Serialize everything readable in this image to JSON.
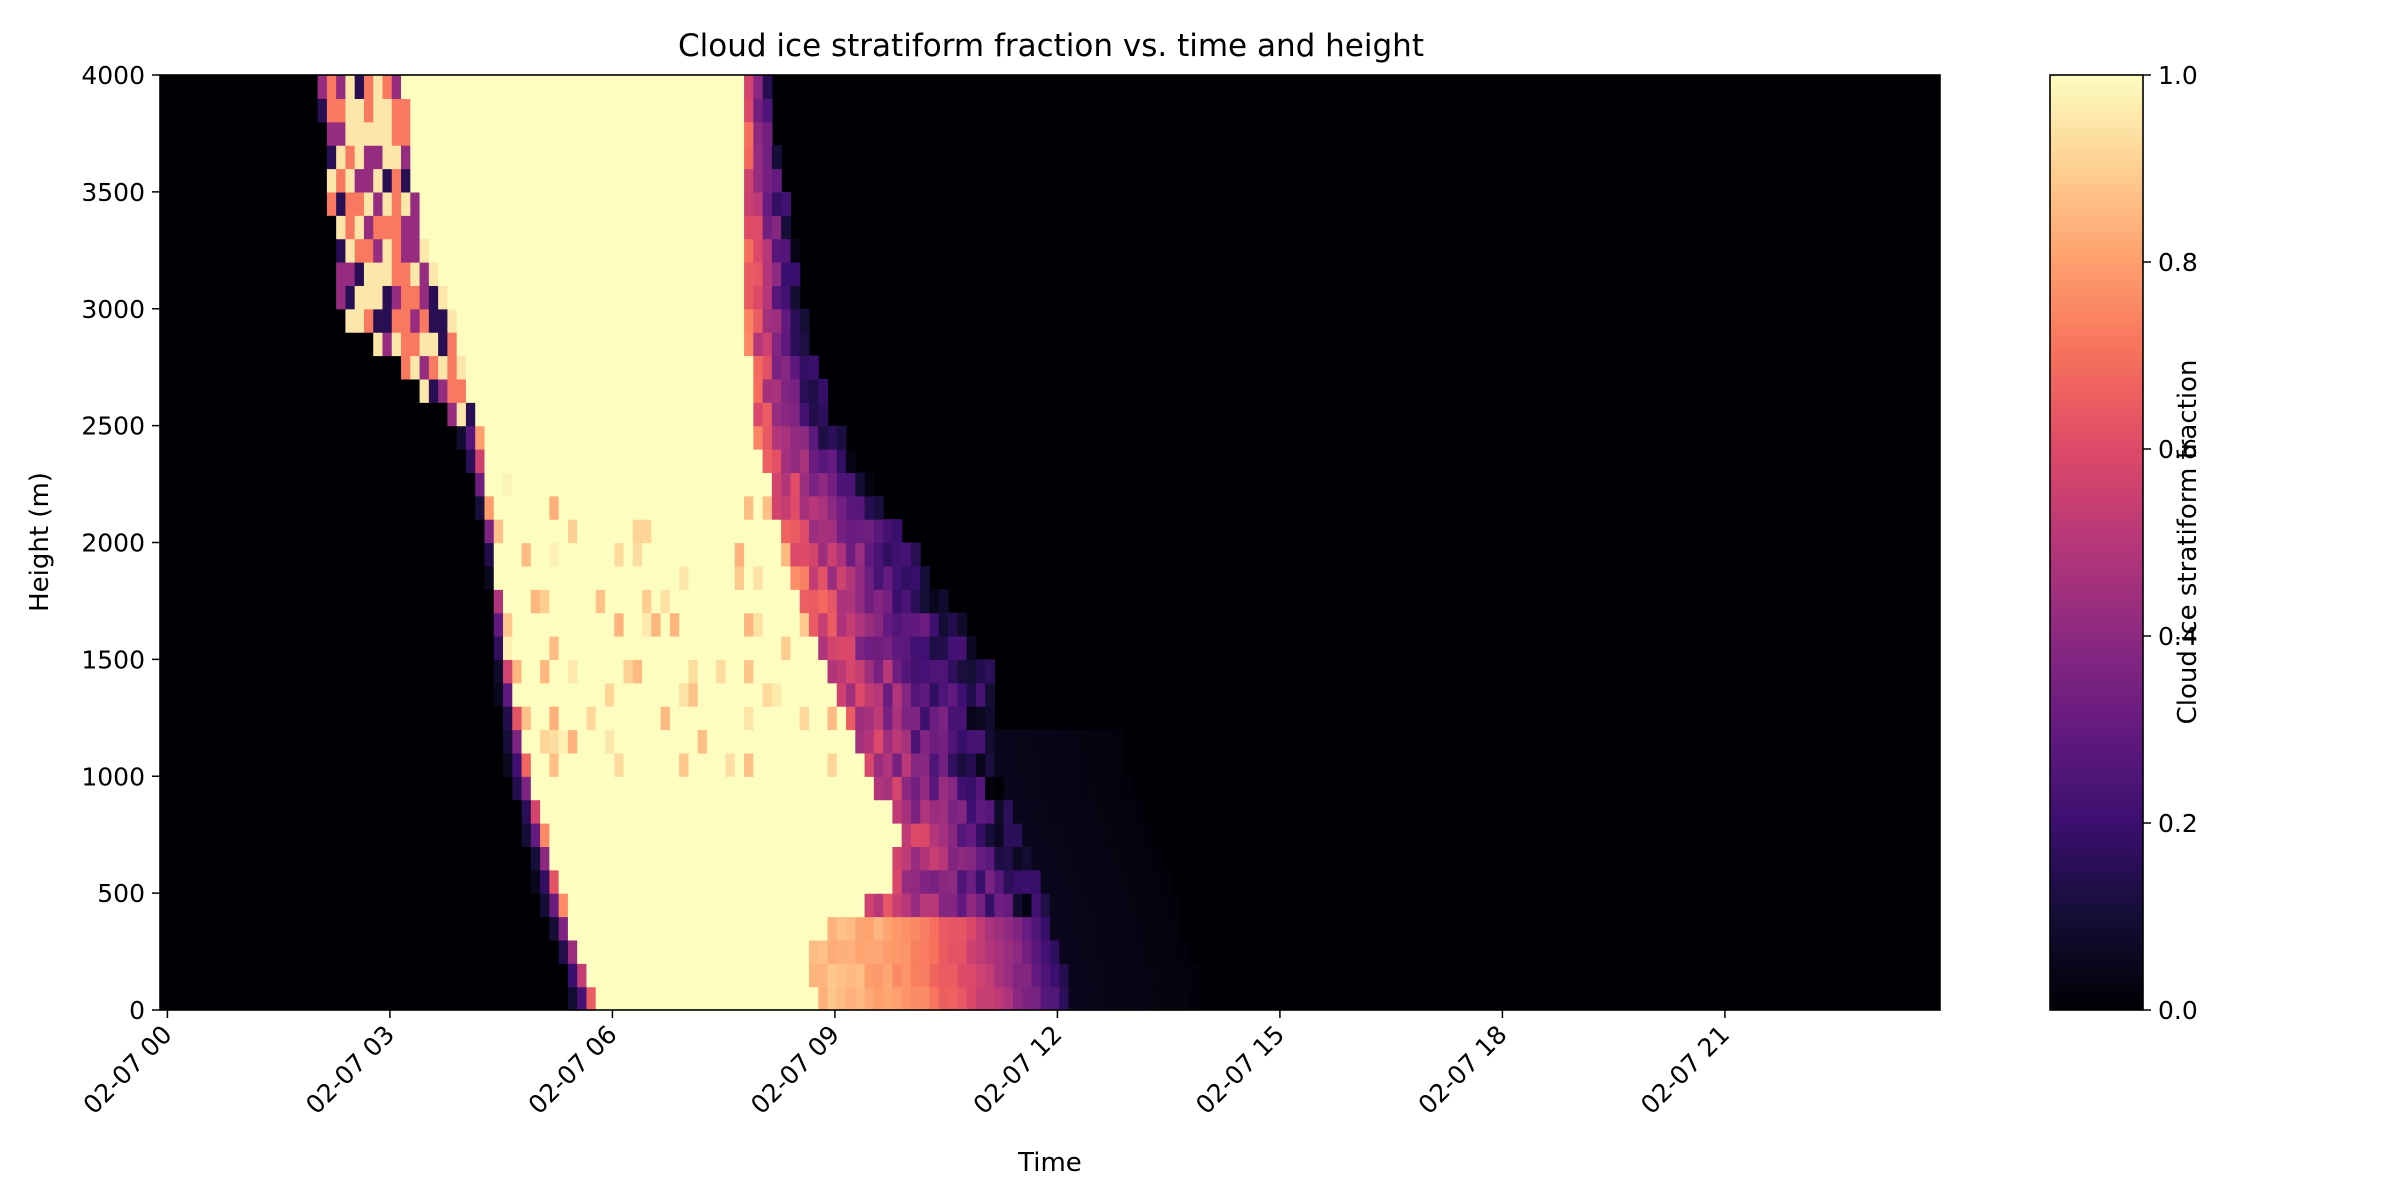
{
  "chart_data": {
    "type": "heatmap",
    "title": "Cloud ice stratiform fraction vs. time and height",
    "xlabel": "Time",
    "ylabel": "Height (m)",
    "colorbar_label": "Cloud ice stratiform fraction",
    "colormap": "magma",
    "color_stops": [
      "#000004",
      "#140e36",
      "#3b0f70",
      "#641a80",
      "#8c2981",
      "#b73779",
      "#de4968",
      "#f7705c",
      "#fe9f6d",
      "#fecf92",
      "#fcfdbf"
    ],
    "x_tick_labels": [
      "02-07 00",
      "02-07 03",
      "02-07 06",
      "02-07 09",
      "02-07 12",
      "02-07 15",
      "02-07 18",
      "02-07 21"
    ],
    "x_tick_hours": [
      0,
      3,
      6,
      9,
      12,
      15,
      18,
      21
    ],
    "xlim_hours": [
      -0.1,
      23.9
    ],
    "y_tick_labels": [
      "0",
      "500",
      "1000",
      "1500",
      "2000",
      "2500",
      "3000",
      "3500",
      "4000"
    ],
    "y_ticks": [
      0,
      500,
      1000,
      1500,
      2000,
      2500,
      3000,
      3500,
      4000
    ],
    "ylim": [
      0,
      4000
    ],
    "colorbar_tick_labels": [
      "0.0",
      "0.2",
      "0.4",
      "0.6",
      "0.8",
      "1.0"
    ],
    "colorbar_ticks": [
      0.0,
      0.2,
      0.4,
      0.6,
      0.8,
      1.0
    ],
    "colorbar_range": [
      0,
      1
    ],
    "grid": false,
    "time_step_hours": 0.125,
    "height_step_m": 100,
    "description_points": {
      "core_left_edge_hours_by_height": [
        [
          0,
          5.8
        ],
        [
          500,
          5.3
        ],
        [
          1000,
          4.9
        ],
        [
          1500,
          4.6
        ],
        [
          2000,
          4.4
        ],
        [
          2500,
          4.2
        ],
        [
          3000,
          3.8
        ],
        [
          3500,
          3.3
        ],
        [
          4000,
          3.2
        ]
      ],
      "outer_left_edge_hours_by_height": [
        [
          0,
          5.5
        ],
        [
          500,
          5.0
        ],
        [
          1000,
          4.6
        ],
        [
          1500,
          4.4
        ],
        [
          2000,
          4.3
        ],
        [
          2500,
          3.9
        ],
        [
          3000,
          2.3
        ],
        [
          3500,
          2.2
        ],
        [
          4000,
          2.0
        ]
      ],
      "core_right_edge_hours_by_height": [
        [
          0,
          8.8
        ],
        [
          300,
          8.6
        ],
        [
          500,
          9.7
        ],
        [
          800,
          9.9
        ],
        [
          1000,
          9.4
        ],
        [
          1500,
          8.8
        ],
        [
          2000,
          8.3
        ],
        [
          2500,
          7.9
        ],
        [
          3000,
          7.8
        ],
        [
          4000,
          7.8
        ]
      ],
      "tail_right_edge_hours_by_height": [
        [
          0,
          12.2
        ],
        [
          300,
          12.0
        ],
        [
          500,
          11.8
        ],
        [
          1000,
          11.2
        ],
        [
          1500,
          11.1
        ],
        [
          2000,
          10.0
        ],
        [
          2500,
          9.0
        ],
        [
          3000,
          8.6
        ],
        [
          4000,
          8.1
        ]
      ]
    }
  }
}
